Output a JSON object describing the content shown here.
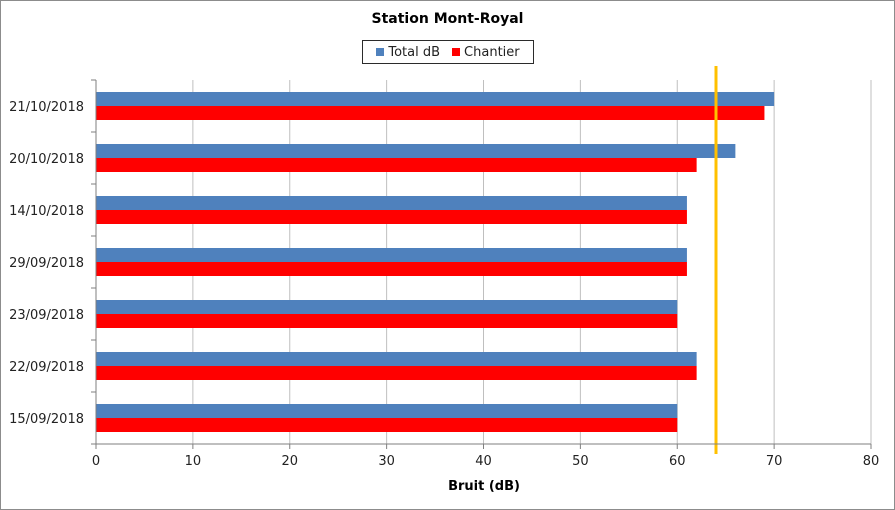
{
  "chart_data": {
    "type": "bar",
    "orientation": "horizontal",
    "title": "Station Mont-Royal",
    "xlabel": "Bruit (dB)",
    "ylabel": "",
    "xlim": [
      0,
      80
    ],
    "xticks": [
      "0",
      "10",
      "20",
      "30",
      "40",
      "50",
      "60",
      "70",
      "80"
    ],
    "categories": [
      "21/10/2018",
      "20/10/2018",
      "14/10/2018",
      "29/09/2018",
      "23/09/2018",
      "22/09/2018",
      "15/09/2018"
    ],
    "series": [
      {
        "name": "Total dB",
        "color": "#4f81bd",
        "values": [
          70,
          66,
          61,
          61,
          60,
          62,
          60
        ]
      },
      {
        "name": "Chantier",
        "color": "#ff0000",
        "values": [
          69,
          62,
          61,
          61,
          60,
          62,
          60
        ]
      }
    ],
    "reference_line": {
      "x": 64,
      "color": "#ffc000"
    },
    "legend_position": "top-center",
    "grid": "vertical"
  }
}
